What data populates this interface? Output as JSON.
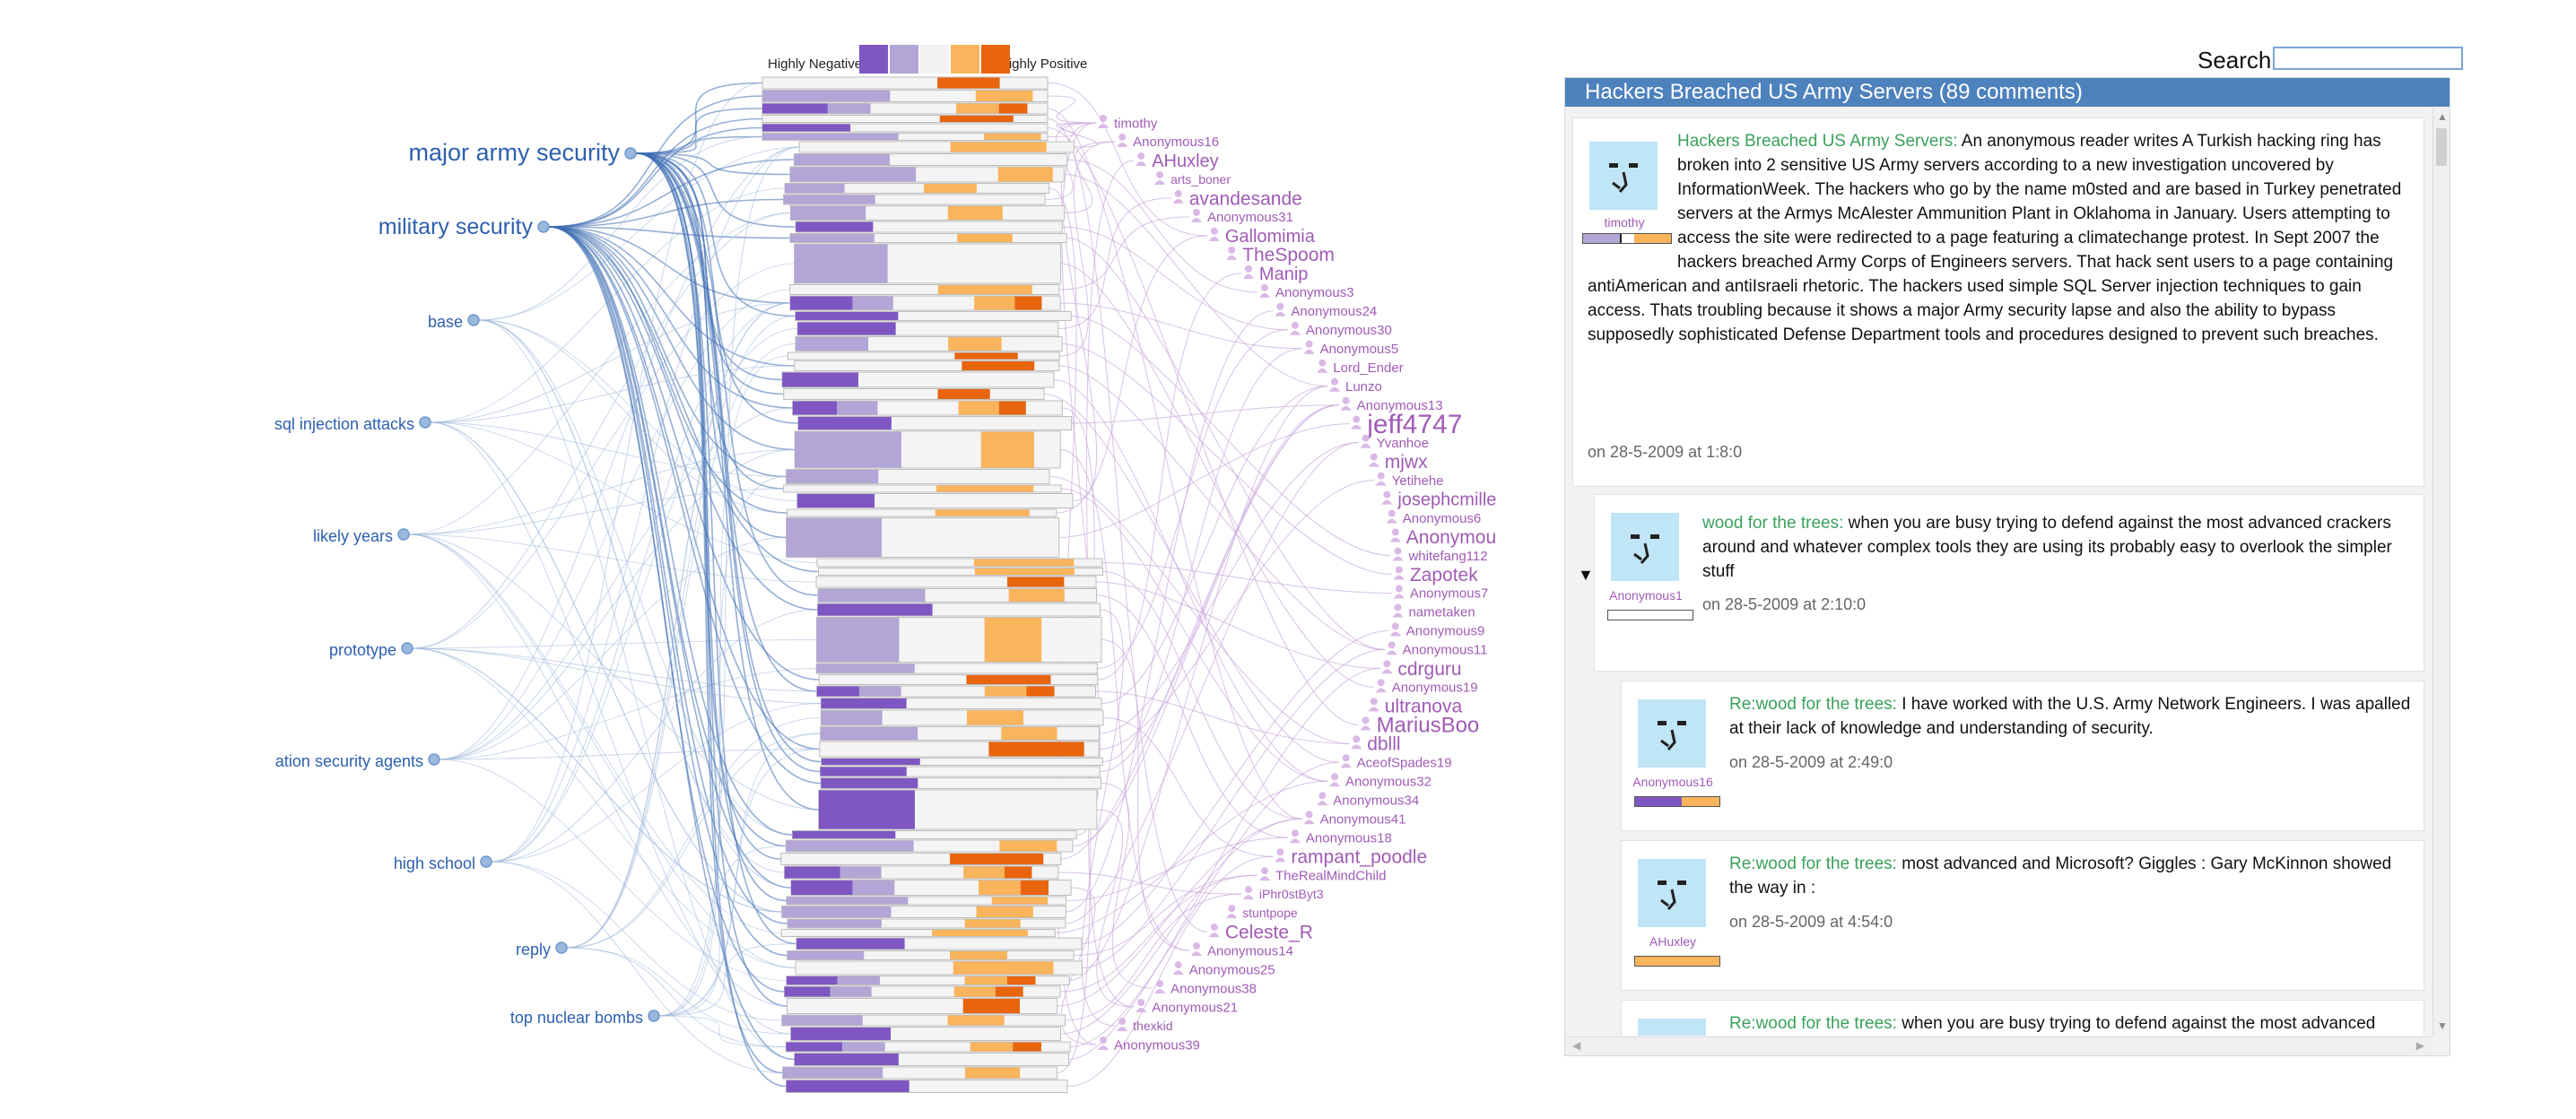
{
  "legend": {
    "negative_label": "Highly Negative",
    "positive_label": "Highly Positive",
    "colors": [
      "#7e57c2",
      "#b3a6d6",
      "#f2f2f2",
      "#f9b45c",
      "#e8650e"
    ]
  },
  "topics": [
    {
      "label": "major army security",
      "size": 27
    },
    {
      "label": "military security",
      "size": 25
    },
    {
      "label": "base",
      "size": 18
    },
    {
      "label": "sql injection attacks",
      "size": 18
    },
    {
      "label": "likely years",
      "size": 18
    },
    {
      "label": "prototype",
      "size": 18
    },
    {
      "label": "ation security agents",
      "size": 18
    },
    {
      "label": "high school",
      "size": 18
    },
    {
      "label": "reply",
      "size": 18
    },
    {
      "label": "top nuclear bombs",
      "size": 18
    }
  ],
  "users": [
    {
      "label": "timothy",
      "size": 15
    },
    {
      "label": "Anonymous16",
      "size": 15
    },
    {
      "label": "AHuxley",
      "size": 20
    },
    {
      "label": "arts_boner",
      "size": 14
    },
    {
      "label": "avandesande",
      "size": 21
    },
    {
      "label": "Anonymous31",
      "size": 15
    },
    {
      "label": "Gallomimia",
      "size": 20
    },
    {
      "label": "TheSpoom",
      "size": 21
    },
    {
      "label": "Manip",
      "size": 20
    },
    {
      "label": "Anonymous3",
      "size": 15
    },
    {
      "label": "Anonymous24",
      "size": 15
    },
    {
      "label": "Anonymous30",
      "size": 15
    },
    {
      "label": "Anonymous5",
      "size": 15
    },
    {
      "label": "Lord_Ender",
      "size": 15
    },
    {
      "label": "Lunzo",
      "size": 15
    },
    {
      "label": "Anonymous13",
      "size": 15
    },
    {
      "label": "jeff4747",
      "size": 30
    },
    {
      "label": "Yvanhoe",
      "size": 15
    },
    {
      "label": "mjwx",
      "size": 21
    },
    {
      "label": "Yetihehe",
      "size": 15
    },
    {
      "label": "josephcmille",
      "size": 20
    },
    {
      "label": "Anonymous6",
      "size": 15
    },
    {
      "label": "Anonymou",
      "size": 21
    },
    {
      "label": "whitefang112",
      "size": 15
    },
    {
      "label": "Zapotek",
      "size": 21
    },
    {
      "label": "Anonymous7",
      "size": 15
    },
    {
      "label": "nametaken",
      "size": 15
    },
    {
      "label": "Anonymous9",
      "size": 15
    },
    {
      "label": "Anonymous11",
      "size": 15
    },
    {
      "label": "cdrguru",
      "size": 21
    },
    {
      "label": "Anonymous19",
      "size": 15
    },
    {
      "label": "ultranova",
      "size": 21
    },
    {
      "label": "MariusBoo",
      "size": 24
    },
    {
      "label": "dblll",
      "size": 21
    },
    {
      "label": "AceofSpades19",
      "size": 15
    },
    {
      "label": "Anonymous32",
      "size": 15
    },
    {
      "label": "Anonymous34",
      "size": 15
    },
    {
      "label": "Anonymous41",
      "size": 15
    },
    {
      "label": "Anonymous18",
      "size": 15
    },
    {
      "label": "rampant_poodle",
      "size": 21
    },
    {
      "label": "TheRealMindChild",
      "size": 15
    },
    {
      "label": "iPhr0stByt3",
      "size": 14
    },
    {
      "label": "stuntpope",
      "size": 14
    },
    {
      "label": "Celeste_R",
      "size": 21
    },
    {
      "label": "Anonymous14",
      "size": 15
    },
    {
      "label": "Anonymous25",
      "size": 15
    },
    {
      "label": "Anonymous38",
      "size": 15
    },
    {
      "label": "Anonymous21",
      "size": 15
    },
    {
      "label": "thexkid",
      "size": 14
    },
    {
      "label": "Anonymous39",
      "size": 15
    }
  ],
  "search": {
    "label": "Search",
    "value": ""
  },
  "thread": {
    "header": "Hackers Breached US Army Servers (89 comments)",
    "comments": [
      {
        "author": "timothy",
        "title": "Hackers Breached US Army Servers:",
        "body": "An anonymous reader writes A Turkish hacking ring has broken into 2 sensitive US Army servers according to a new investigation uncovered by InformationWeek. The hackers who go by the name m0sted and are based in Turkey penetrated servers at the Armys McAlester Ammunition Plant in Oklahoma in January. Users attempting to access the site were redirected to a page featuring a climatechange protest. In Sept 2007 the hackers breached Army Corps of Engineers servers. That hack sent users to a page containing antiAmerican and antiIsraeli rhetoric. The hackers used simple SQL Server injection techniques to gain access. Thats troubling because it shows a major Army security lapse and also the ability to bypass supposedly sophisticated Defense Department tools and procedures designed to prevent such breaches.",
        "date": "on 28-5-2009 at 1:8:0",
        "sentiment": [
          0.42,
          0.16,
          0.42
        ]
      },
      {
        "author": "Anonymous1",
        "title": "wood for the trees:",
        "body": "when you are busy trying to defend against the most advanced crackers around and whatever complex tools they are using its probably easy to overlook the simpler stuff",
        "date": "on 28-5-2009 at 2:10:0",
        "sentiment": [
          0.0,
          1.0,
          0.0
        ]
      },
      {
        "author": "Anonymous16",
        "title": "Re:wood for the trees:",
        "body": "I have worked with the U.S. Army Network Engineers. I was apalled at their lack of knowledge and understanding of security.",
        "date": "on 28-5-2009 at 2:49:0",
        "sentiment": [
          0.55,
          0.0,
          0.45
        ]
      },
      {
        "author": "AHuxley",
        "title": "Re:wood for the trees:",
        "body": "most advanced and Microsoft? Giggles : Gary McKinnon showed the way in :",
        "date": "on 28-5-2009 at 4:54:0",
        "sentiment": [
          0.0,
          0.0,
          1.0
        ]
      },
      {
        "author": "",
        "title": "Re:wood for the trees:",
        "body": "when you are busy trying to defend against the most advanced crackers around Are you serious? Are you really going to parrot that asinine hacker vs. cracker bullshit in 2009? Youre like one of those stranded Japanese soldiers who thinks",
        "date": "",
        "sentiment": [
          0,
          0,
          0
        ]
      }
    ]
  },
  "toggle_glyph": "▼"
}
